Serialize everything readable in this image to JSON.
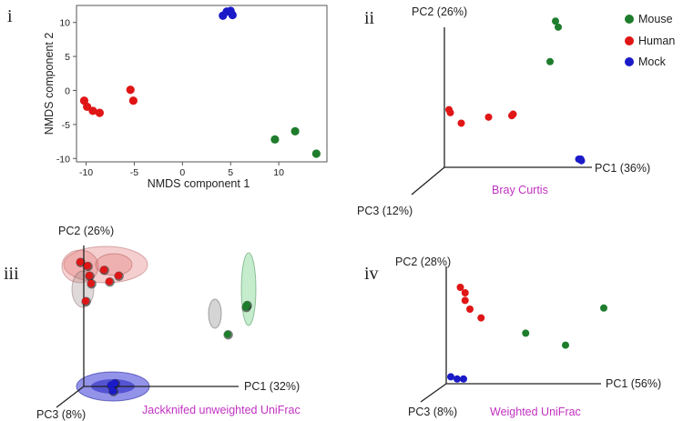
{
  "colors": {
    "Mouse": "#1e7d2c",
    "Human": "#e01515",
    "Mock": "#1a1ac8",
    "method": "#c232c2",
    "axis": "#222222"
  },
  "legend": [
    {
      "label": "Mouse",
      "color": "#1e7d2c"
    },
    {
      "label": "Human",
      "color": "#e01515"
    },
    {
      "label": "Mock",
      "color": "#1a1ac8"
    }
  ],
  "panels": {
    "i": {
      "numeral": "i"
    },
    "ii": {
      "numeral": "ii",
      "pc1": "PC1 (36%)",
      "pc2": "PC2 (26%)",
      "pc3": "PC3 (12%)",
      "method": "Bray Curtis"
    },
    "iii": {
      "numeral": "iii",
      "pc1": "PC1 (32%)",
      "pc2": "PC2 (26%)",
      "pc3": "PC3 (8%)",
      "method": "Jackknifed unweighted UniFrac"
    },
    "iv": {
      "numeral": "iv",
      "pc1": "PC1 (56%)",
      "pc2": "PC2 (28%)",
      "pc3": "PC3 (8%)",
      "method": "Weighted UniFrac"
    }
  },
  "chart_data": [
    {
      "panel": "i",
      "type": "scatter",
      "xlabel": "NMDS component 1",
      "ylabel": "NMDS component 2",
      "xlim": [
        -11,
        15
      ],
      "ylim": [
        -10.5,
        12.5
      ],
      "xticks": [
        -10,
        -5,
        0,
        5,
        10
      ],
      "yticks": [
        -10,
        -5,
        0,
        5,
        10
      ],
      "grid": false,
      "series": [
        {
          "name": "Human",
          "x": [
            -10.2,
            -9.9,
            -9.3,
            -8.6,
            -5.4,
            -5.1
          ],
          "y": [
            -1.5,
            -2.4,
            -3.0,
            -3.3,
            0.1,
            -1.5
          ]
        },
        {
          "name": "Mock",
          "x": [
            4.2,
            4.6,
            5.0,
            5.2
          ],
          "y": [
            11.0,
            11.6,
            11.7,
            11.1
          ]
        },
        {
          "name": "Mouse",
          "x": [
            9.6,
            11.7,
            13.9
          ],
          "y": [
            -7.2,
            -6.0,
            -9.3
          ]
        }
      ]
    },
    {
      "panel": "ii",
      "type": "scatter",
      "projection": "3D PCoA",
      "xlabel": "PC1 (36%)",
      "ylabel": "PC2 (26%)",
      "zlabel": "PC3 (12%)",
      "grid": false,
      "series": [
        {
          "name": "Mouse",
          "x": [
            0.8,
            0.82,
            0.76
          ],
          "y": [
            0.95,
            0.91,
            0.68
          ],
          "z": [
            0,
            0,
            0
          ]
        },
        {
          "name": "Human",
          "x": [
            0.02,
            0.03,
            0.11,
            0.31,
            0.48,
            0.49
          ],
          "y": [
            0.36,
            0.34,
            0.27,
            0.31,
            0.32,
            0.33
          ],
          "z": [
            0,
            0,
            0,
            0,
            0,
            0
          ]
        },
        {
          "name": "Mock",
          "x": [
            0.97,
            0.985,
            0.99
          ],
          "y": [
            0.03,
            0.03,
            0.02
          ],
          "z": [
            0,
            0,
            0
          ]
        }
      ]
    },
    {
      "panel": "iii",
      "type": "scatter",
      "projection": "3D PCoA with jackknife confidence ellipsoids",
      "xlabel": "PC1 (32%)",
      "ylabel": "PC2 (26%)",
      "zlabel": "PC3 (8%)",
      "grid": false,
      "series": [
        {
          "name": "Human",
          "x": [
            0.0,
            0.04,
            0.05,
            0.06,
            0.03,
            0.13,
            0.16,
            0.21
          ],
          "y": [
            0.66,
            0.64,
            0.59,
            0.55,
            0.46,
            0.62,
            0.56,
            0.59
          ],
          "z": [
            0,
            0,
            0,
            0,
            0,
            0,
            0,
            0
          ]
        },
        {
          "name": "Mouse",
          "x": [
            0.81,
            0.91,
            0.915
          ],
          "y": [
            0.29,
            0.43,
            0.44
          ],
          "z": [
            0,
            0,
            0
          ]
        },
        {
          "name": "Mock",
          "x": [
            0.17,
            0.19,
            0.18
          ],
          "y": [
            0.03,
            0.04,
            0.0
          ],
          "z": [
            0,
            0,
            0
          ]
        }
      ]
    },
    {
      "panel": "iv",
      "type": "scatter",
      "projection": "3D PCoA",
      "xlabel": "PC1 (56%)",
      "ylabel": "PC2 (28%)",
      "zlabel": "PC3 (8%)",
      "grid": false,
      "series": [
        {
          "name": "Human",
          "x": [
            0.06,
            0.09,
            0.09,
            0.12,
            0.19
          ],
          "y": [
            0.85,
            0.8,
            0.73,
            0.65,
            0.57
          ],
          "z": [
            0,
            0,
            0,
            0,
            0
          ]
        },
        {
          "name": "Mouse",
          "x": [
            0.47,
            0.72,
            0.96
          ],
          "y": [
            0.43,
            0.32,
            0.66
          ],
          "z": [
            0,
            0,
            0
          ]
        },
        {
          "name": "Mock",
          "x": [
            0.0,
            0.04,
            0.08
          ],
          "y": [
            0.03,
            0.01,
            0.01
          ],
          "z": [
            0,
            0,
            0
          ]
        }
      ]
    }
  ]
}
